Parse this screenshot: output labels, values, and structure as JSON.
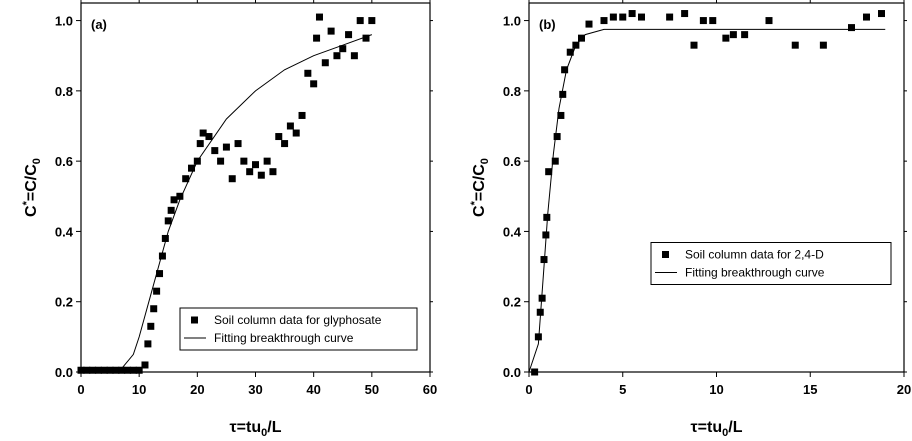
{
  "chart_data": [
    {
      "type": "scatter",
      "annotation": "(a)",
      "x_label": [
        "τ=tu",
        "0",
        "/L"
      ],
      "y_label": [
        "C",
        "*",
        "=C/C",
        "0"
      ],
      "xlim": [
        0,
        60
      ],
      "xticks": [
        0,
        10,
        20,
        30,
        40,
        50,
        60
      ],
      "ylim": [
        0,
        1.05
      ],
      "yticks": [
        {
          "value": 0,
          "label": "0.0"
        },
        {
          "value": 0.2,
          "label": "0.2"
        },
        {
          "value": 0.4,
          "label": "0.4"
        },
        {
          "value": 0.6,
          "label": "0.6"
        },
        {
          "value": 0.8,
          "label": "0.8"
        },
        {
          "value": 1,
          "label": "1.0"
        }
      ],
      "legend": "lower right",
      "series": [
        {
          "name": "Soil column data for glyphosate",
          "type": "scatter",
          "color": "#000000",
          "x": [
            0,
            1,
            2,
            3,
            4,
            5,
            6,
            7,
            8,
            9,
            10,
            11,
            11.5,
            12,
            12.5,
            13,
            13.5,
            14,
            14.5,
            15,
            15.5,
            16,
            17,
            18,
            19,
            20,
            20.5,
            21,
            22,
            23,
            24,
            25,
            26,
            27,
            28,
            29,
            30,
            31,
            32,
            33,
            34,
            35,
            36,
            37,
            38,
            39,
            40,
            40.5,
            41,
            42,
            43,
            44,
            45,
            46,
            47,
            48,
            49,
            50
          ],
          "values": [
            0.005,
            0.005,
            0.005,
            0.005,
            0.005,
            0.005,
            0.005,
            0.005,
            0.005,
            0.005,
            0.005,
            0.02,
            0.08,
            0.13,
            0.18,
            0.23,
            0.28,
            0.33,
            0.38,
            0.43,
            0.46,
            0.49,
            0.5,
            0.55,
            0.58,
            0.6,
            0.65,
            0.68,
            0.67,
            0.63,
            0.6,
            0.64,
            0.55,
            0.65,
            0.6,
            0.57,
            0.59,
            0.56,
            0.6,
            0.57,
            0.67,
            0.65,
            0.7,
            0.68,
            0.73,
            0.85,
            0.82,
            0.95,
            1.01,
            0.88,
            0.97,
            0.9,
            0.92,
            0.96,
            0.9,
            1.0,
            0.95,
            1.0
          ]
        },
        {
          "name": "Fitting breakthrough curve",
          "type": "line",
          "color": "#000000",
          "x": [
            0,
            5,
            7,
            9,
            10,
            11,
            12,
            13,
            14,
            15,
            17,
            20,
            25,
            30,
            35,
            40,
            45,
            50
          ],
          "values": [
            0,
            0,
            0.01,
            0.05,
            0.1,
            0.16,
            0.22,
            0.28,
            0.34,
            0.4,
            0.49,
            0.6,
            0.72,
            0.8,
            0.86,
            0.9,
            0.93,
            0.96
          ]
        }
      ]
    },
    {
      "type": "scatter",
      "annotation": "(b)",
      "x_label": [
        "τ=tu",
        "0",
        "/L"
      ],
      "y_label": [
        "C",
        "*",
        "=C/C",
        "0"
      ],
      "xlim": [
        0,
        20
      ],
      "xticks": [
        0,
        5,
        10,
        15,
        20
      ],
      "ylim": [
        0,
        1.05
      ],
      "yticks": [
        {
          "value": 0,
          "label": "0.0"
        },
        {
          "value": 0.2,
          "label": "0.2"
        },
        {
          "value": 0.4,
          "label": "0.4"
        },
        {
          "value": 0.6,
          "label": "0.6"
        },
        {
          "value": 0.8,
          "label": "0.8"
        },
        {
          "value": 1,
          "label": "1.0"
        }
      ],
      "legend": "center right",
      "series": [
        {
          "name": "Soil column data for 2,4-D",
          "type": "scatter",
          "color": "#000000",
          "x": [
            0.3,
            0.5,
            0.6,
            0.7,
            0.8,
            0.9,
            0.95,
            1.05,
            1.4,
            1.5,
            1.7,
            1.8,
            1.9,
            2.2,
            2.5,
            2.8,
            3.2,
            4,
            4.5,
            5,
            5.5,
            6,
            7.5,
            8.3,
            8.8,
            9.3,
            9.8,
            10.5,
            10.9,
            11.5,
            12.8,
            14.2,
            15.7,
            17.2,
            18,
            18.8
          ],
          "values": [
            0,
            0.1,
            0.17,
            0.21,
            0.32,
            0.39,
            0.44,
            0.57,
            0.6,
            0.67,
            0.73,
            0.79,
            0.86,
            0.91,
            0.93,
            0.95,
            0.99,
            1.0,
            1.01,
            1.01,
            1.02,
            1.01,
            1.01,
            1.02,
            0.93,
            1.0,
            1.0,
            0.95,
            0.96,
            0.96,
            1.0,
            0.93,
            0.93,
            0.98,
            1.01,
            1.02
          ]
        },
        {
          "name": "Fitting breakthrough curve",
          "type": "line",
          "color": "#000000",
          "x": [
            0,
            0.5,
            0.8,
            1,
            1.3,
            1.6,
            2,
            2.5,
            3,
            4,
            6,
            19
          ],
          "values": [
            0,
            0.08,
            0.3,
            0.45,
            0.62,
            0.75,
            0.86,
            0.93,
            0.96,
            0.975,
            0.975,
            0.975
          ]
        }
      ]
    }
  ]
}
